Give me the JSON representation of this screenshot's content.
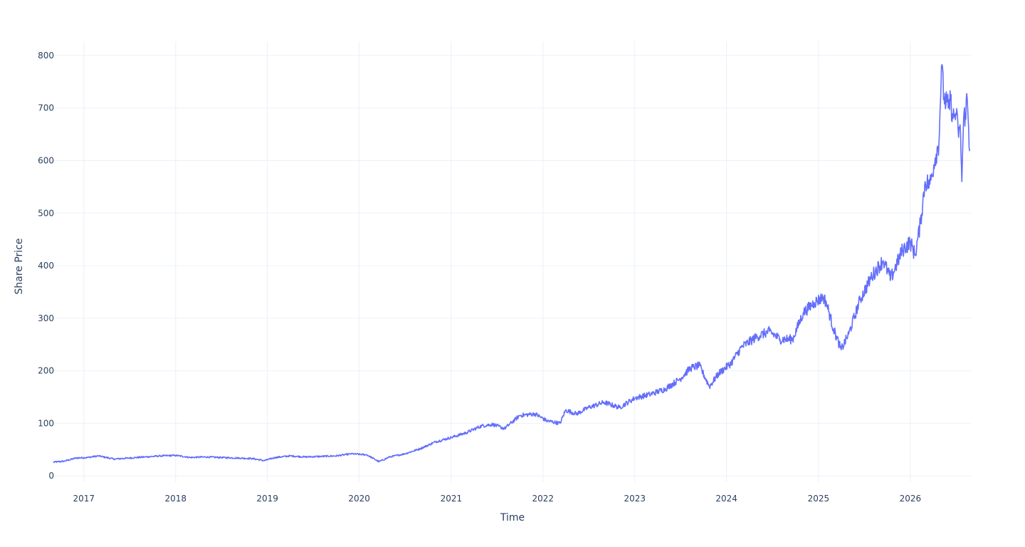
{
  "chart_data": {
    "type": "line",
    "title": "",
    "xlabel": "Time",
    "ylabel": "Share Price",
    "x_ticks": [
      "2017",
      "2018",
      "2019",
      "2020",
      "2021",
      "2022",
      "2023",
      "2024",
      "2025",
      "2026"
    ],
    "y_ticks": [
      0,
      100,
      200,
      300,
      400,
      500,
      600,
      700,
      800
    ],
    "xlim": [
      "2016-08-30",
      "2026-08-30"
    ],
    "ylim": [
      -12,
      827
    ],
    "grid": true,
    "legend": "none",
    "line_color": "#636efa",
    "gridline_color": "#ebf0f8",
    "series": [
      {
        "x": [
          "2016-09-01",
          "2016-10-15",
          "2016-12-01",
          "2017-01-15",
          "2017-03-01",
          "2017-05-01",
          "2017-07-01",
          "2017-09-01",
          "2017-11-01",
          "2018-01-01",
          "2018-03-01",
          "2018-05-01",
          "2018-07-01",
          "2018-09-01",
          "2018-11-01",
          "2018-12-20",
          "2019-02-01",
          "2019-04-01",
          "2019-06-01",
          "2019-08-01",
          "2019-10-01",
          "2019-12-01",
          "2020-02-01",
          "2020-03-20",
          "2020-05-01",
          "2020-07-01",
          "2020-09-01",
          "2020-11-01",
          "2021-01-01",
          "2021-03-01",
          "2021-05-01",
          "2021-06-15",
          "2021-08-01",
          "2021-10-01",
          "2021-12-01",
          "2022-01-15",
          "2022-03-10",
          "2022-04-01",
          "2022-05-15",
          "2022-07-01",
          "2022-09-01",
          "2022-11-01",
          "2023-01-01",
          "2023-03-01",
          "2023-05-01",
          "2023-07-01",
          "2023-08-10",
          "2023-09-15",
          "2023-10-25",
          "2023-12-01",
          "2024-01-20",
          "2024-03-01",
          "2024-05-01",
          "2024-06-20",
          "2024-08-01",
          "2024-09-20",
          "2024-11-01",
          "2024-12-15",
          "2025-01-20",
          "2025-02-01",
          "2025-03-01",
          "2025-04-01",
          "2025-05-01",
          "2025-06-15",
          "2025-08-01",
          "2025-09-15",
          "2025-10-15",
          "2025-12-01",
          "2026-01-01",
          "2026-01-20",
          "2026-02-10",
          "2026-03-01",
          "2026-03-20",
          "2026-04-10",
          "2026-04-25",
          "2026-05-05",
          "2026-05-15",
          "2026-06-01",
          "2026-06-10",
          "2026-06-20",
          "2026-07-01",
          "2026-07-10",
          "2026-07-20",
          "2026-07-25",
          "2026-08-01",
          "2026-08-08",
          "2026-08-15",
          "2026-08-25"
        ],
        "values": [
          26,
          28,
          34,
          35,
          38,
          32,
          34,
          36,
          38,
          39,
          35,
          36,
          35,
          34,
          33,
          29,
          35,
          38,
          36,
          37,
          38,
          42,
          40,
          27,
          36,
          42,
          52,
          65,
          73,
          82,
          95,
          98,
          90,
          115,
          118,
          105,
          100,
          125,
          118,
          130,
          140,
          130,
          148,
          155,
          165,
          185,
          205,
          210,
          170,
          195,
          215,
          245,
          265,
          275,
          260,
          260,
          310,
          330,
          340,
          330,
          280,
          240,
          270,
          335,
          380,
          410,
          375,
          430,
          445,
          420,
          480,
          560,
          555,
          605,
          635,
          780,
          720,
          700,
          715,
          680,
          690,
          660,
          650,
          560,
          680,
          690,
          720,
          618
        ]
      }
    ]
  }
}
